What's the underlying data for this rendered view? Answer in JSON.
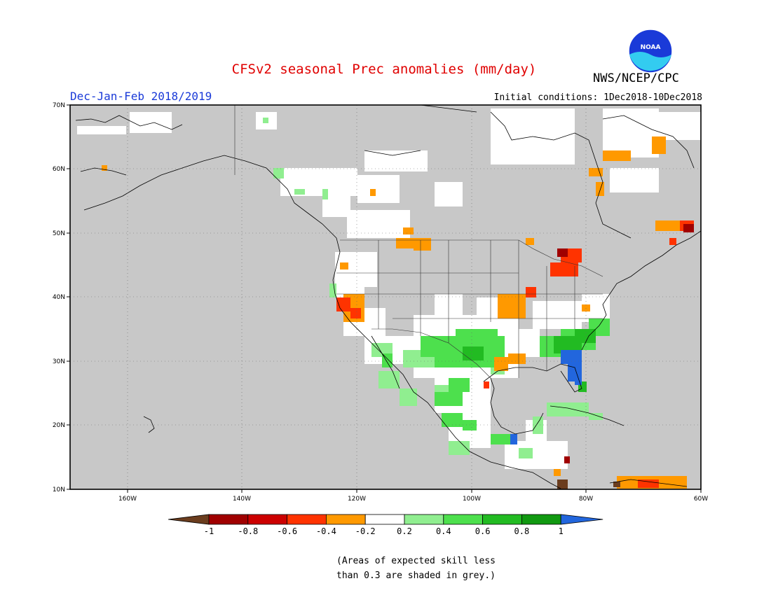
{
  "header": {
    "title": "CFSv2 seasonal Prec anomalies (mm/day)",
    "season": "Dec-Jan-Feb 2018/2019",
    "initial_conditions": "Initial conditions: 1Dec2018-10Dec2018",
    "organization": "NWS/NCEP/CPC",
    "logo_text": "NOAA"
  },
  "map": {
    "lon_range": [
      -172,
      -60
    ],
    "lat_range": [
      10,
      70
    ],
    "lon_ticks": [
      "160W",
      "140W",
      "120W",
      "100W",
      "80W",
      "60W"
    ],
    "lat_ticks": [
      "10N",
      "20N",
      "30N",
      "40N",
      "50N",
      "60N",
      "70N"
    ],
    "grey_mask_color": "#c8c8c8",
    "gridlines": "dotted"
  },
  "colorbar": {
    "labels": [
      "-1",
      "-0.8",
      "-0.6",
      "-0.4",
      "-0.2",
      "0.2",
      "0.4",
      "0.6",
      "0.8",
      "1"
    ],
    "colors": [
      "#6b3d1e",
      "#a00000",
      "#cc0000",
      "#ff3300",
      "#ff9900",
      "#ffffff",
      "#90ee90",
      "#4de04d",
      "#22bb22",
      "#119911",
      "#2266dd"
    ]
  },
  "footnote": {
    "line1": "(Areas of expected skill less",
    "line2": "than 0.3 are shaded in grey.)"
  }
}
